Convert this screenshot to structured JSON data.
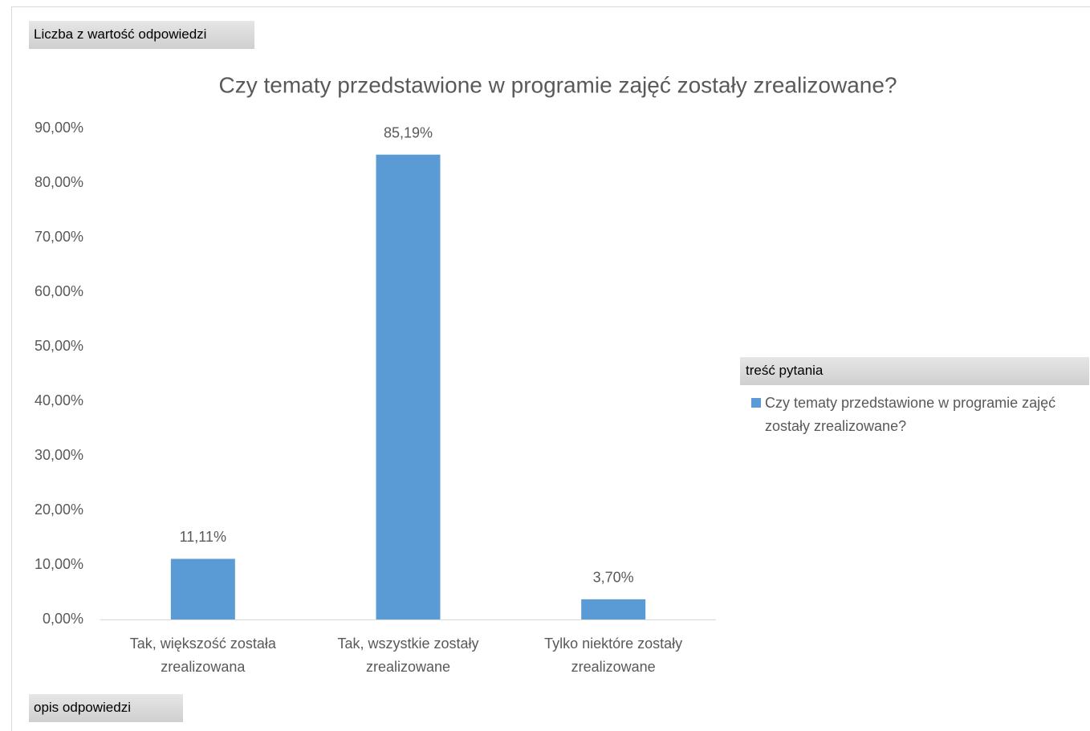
{
  "chart_data": {
    "type": "bar",
    "value_field": "Liczba z wartość odpowiedzi",
    "title": "Czy  tematy przedstawione w programie zajęć zostały zrealizowane?",
    "categories": [
      "Tak, większość została zrealizowana",
      "Tak, wszystkie zostały zrealizowane",
      "Tylko niektóre zostały zrealizowane"
    ],
    "category_field": "opis odpowiedzi",
    "legend_title": "treść pytania",
    "series": [
      {
        "name": "Czy  tematy przedstawione w programie zajęć zostały zrealizowane?",
        "color": "#5b9bd5",
        "values": [
          11.11,
          85.19,
          3.7
        ],
        "value_labels": [
          "11,11%",
          "85,19%",
          "3,70%"
        ]
      }
    ],
    "ylim": [
      0,
      90
    ],
    "yticks": [
      {
        "value": 0,
        "label": "0,00%"
      },
      {
        "value": 10,
        "label": "10,00%"
      },
      {
        "value": 20,
        "label": "20,00%"
      },
      {
        "value": 30,
        "label": "30,00%"
      },
      {
        "value": 40,
        "label": "40,00%"
      },
      {
        "value": 50,
        "label": "50,00%"
      },
      {
        "value": 60,
        "label": "60,00%"
      },
      {
        "value": 70,
        "label": "70,00%"
      },
      {
        "value": 80,
        "label": "80,00%"
      },
      {
        "value": 90,
        "label": "90,00%"
      }
    ],
    "grid": false,
    "legend": "right"
  }
}
